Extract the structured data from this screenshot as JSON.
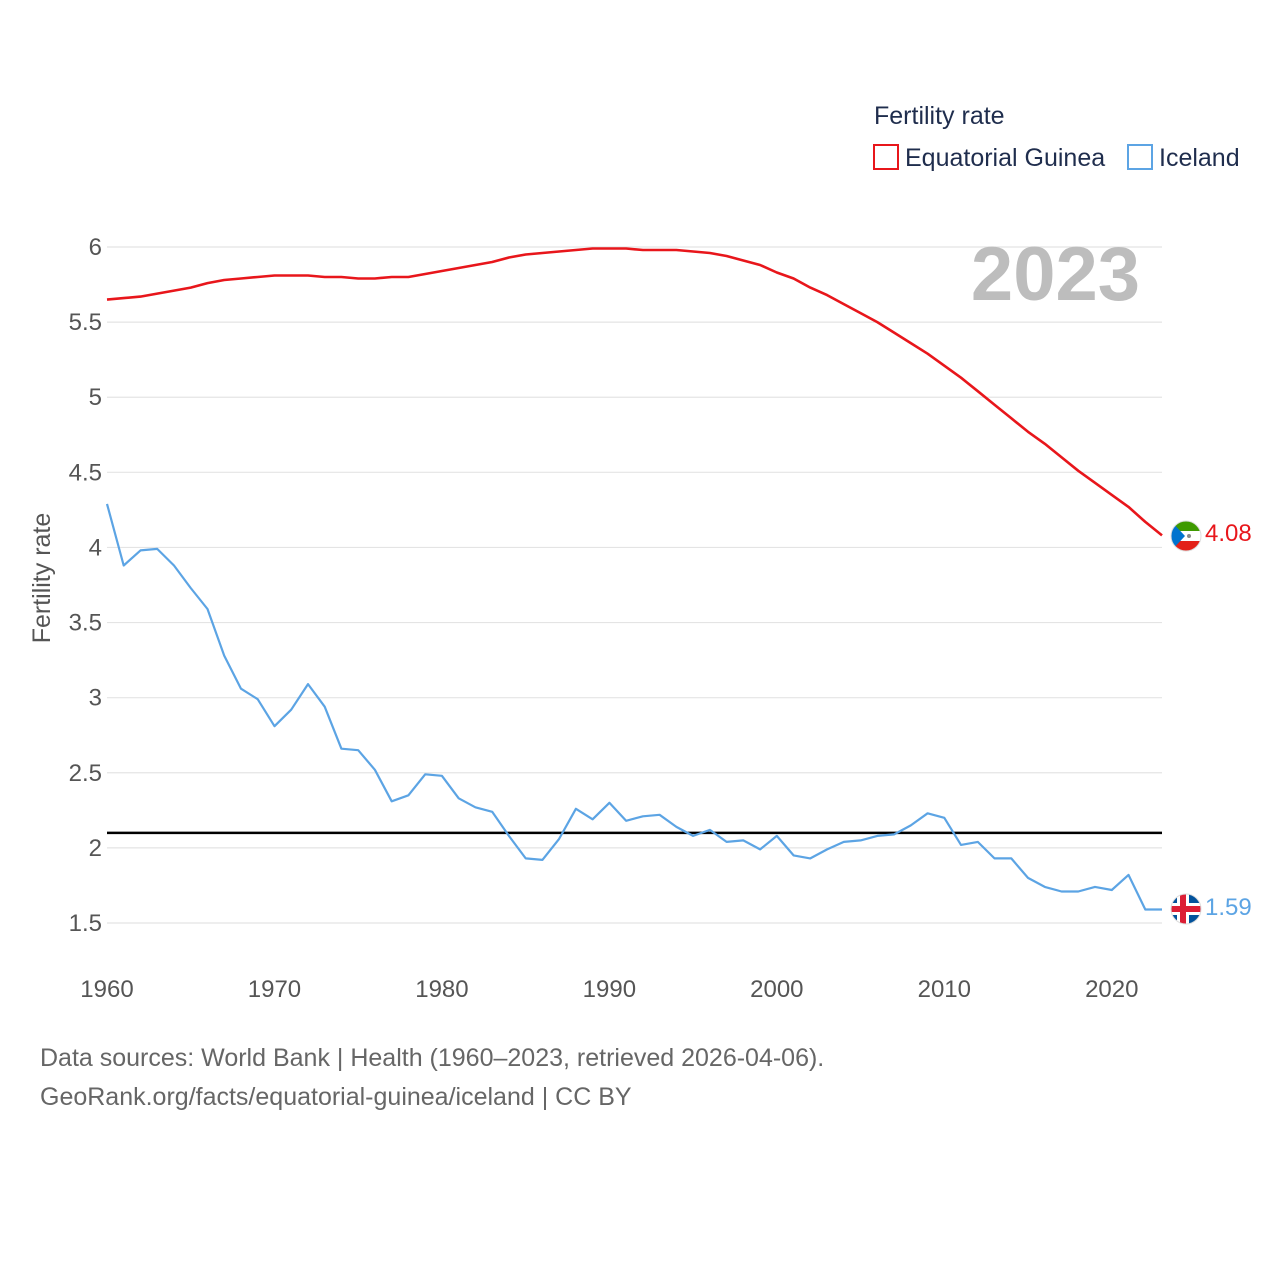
{
  "chart_data": {
    "type": "line",
    "year_label": "2023",
    "ylabel": "Fertility rate",
    "ylim": [
      1.2,
      6.2
    ],
    "xlim": [
      1960,
      2023
    ],
    "yticks": [
      1.5,
      2,
      2.5,
      3,
      3.5,
      4,
      4.5,
      5,
      5.5,
      6
    ],
    "ytick_labels": [
      "1.5",
      "2",
      "2.5",
      "3",
      "3.5",
      "4",
      "4.5",
      "5",
      "5.5",
      "6"
    ],
    "xticks": [
      1960,
      1970,
      1980,
      1990,
      2000,
      2010,
      2020
    ],
    "xtick_labels": [
      "1960",
      "1970",
      "1980",
      "1990",
      "2000",
      "2010",
      "2020"
    ],
    "reference_line": {
      "y": 2.1,
      "color": "#000000"
    },
    "legend": {
      "title": "Fertility rate",
      "position": "top-right"
    },
    "x": [
      1960,
      1961,
      1962,
      1963,
      1964,
      1965,
      1966,
      1967,
      1968,
      1969,
      1970,
      1971,
      1972,
      1973,
      1974,
      1975,
      1976,
      1977,
      1978,
      1979,
      1980,
      1981,
      1982,
      1983,
      1984,
      1985,
      1986,
      1987,
      1988,
      1989,
      1990,
      1991,
      1992,
      1993,
      1994,
      1995,
      1996,
      1997,
      1998,
      1999,
      2000,
      2001,
      2002,
      2003,
      2004,
      2005,
      2006,
      2007,
      2008,
      2009,
      2010,
      2011,
      2012,
      2013,
      2014,
      2015,
      2016,
      2017,
      2018,
      2019,
      2020,
      2021,
      2022,
      2023
    ],
    "series": [
      {
        "name": "Equatorial Guinea",
        "color": "#e8161b",
        "end_label": "4.08",
        "values": [
          5.65,
          5.66,
          5.67,
          5.69,
          5.71,
          5.73,
          5.76,
          5.78,
          5.79,
          5.8,
          5.81,
          5.81,
          5.81,
          5.8,
          5.8,
          5.79,
          5.79,
          5.8,
          5.8,
          5.82,
          5.84,
          5.86,
          5.88,
          5.9,
          5.93,
          5.95,
          5.96,
          5.97,
          5.98,
          5.99,
          5.99,
          5.99,
          5.98,
          5.98,
          5.98,
          5.97,
          5.96,
          5.94,
          5.91,
          5.88,
          5.83,
          5.79,
          5.73,
          5.68,
          5.62,
          5.56,
          5.5,
          5.43,
          5.36,
          5.29,
          5.21,
          5.13,
          5.04,
          4.95,
          4.86,
          4.77,
          4.69,
          4.6,
          4.51,
          4.43,
          4.35,
          4.27,
          4.17,
          4.08
        ]
      },
      {
        "name": "Iceland",
        "color": "#5ca4e4",
        "end_label": "1.59",
        "values": [
          4.29,
          3.88,
          3.98,
          3.99,
          3.88,
          3.73,
          3.59,
          3.28,
          3.06,
          2.99,
          2.81,
          2.92,
          3.09,
          2.94,
          2.66,
          2.65,
          2.52,
          2.31,
          2.35,
          2.49,
          2.48,
          2.33,
          2.27,
          2.24,
          2.08,
          1.93,
          1.92,
          2.06,
          2.26,
          2.19,
          2.3,
          2.18,
          2.21,
          2.22,
          2.14,
          2.08,
          2.12,
          2.04,
          2.05,
          1.99,
          2.08,
          1.95,
          1.93,
          1.99,
          2.04,
          2.05,
          2.08,
          2.09,
          2.15,
          2.23,
          2.2,
          2.02,
          2.04,
          1.93,
          1.93,
          1.8,
          1.74,
          1.71,
          1.71,
          1.74,
          1.72,
          1.82,
          1.59,
          1.59
        ]
      }
    ]
  },
  "footer": {
    "line1": "Data sources: World Bank | Health (1960–2023, retrieved 2026-04-06).",
    "line2": "GeoRank.org/facts/equatorial-guinea/iceland | CC BY"
  }
}
